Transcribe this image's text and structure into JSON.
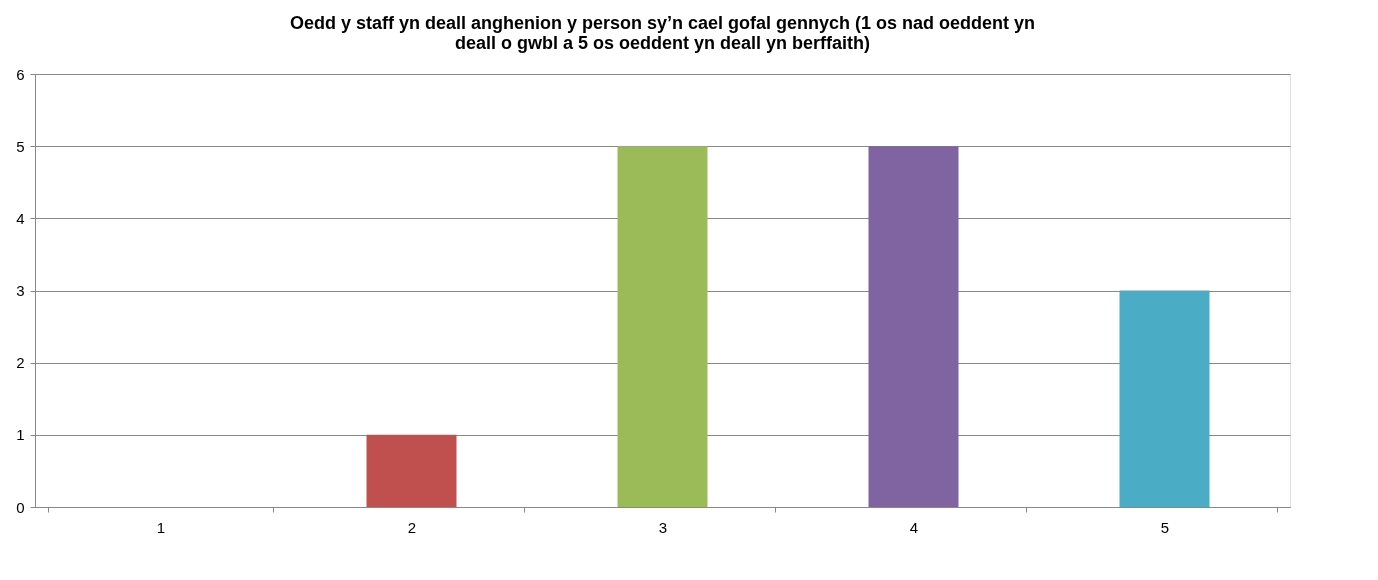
{
  "chart_data": {
    "type": "bar",
    "title": "Oedd y staff yn deall anghenion y person sy’n cael gofal gennych (1 os nad oeddent yn deall o gwbl a 5 os oeddent yn deall yn berffaith)",
    "categories": [
      "1",
      "2",
      "3",
      "4",
      "5"
    ],
    "values": [
      0,
      1,
      5,
      5,
      3
    ],
    "colors": [
      "#4f81bd",
      "#c0504d",
      "#9bbb59",
      "#8064a2",
      "#4bacc6"
    ],
    "ylim": [
      0,
      6
    ],
    "yticks": [
      0,
      1,
      2,
      3,
      4,
      5,
      6
    ],
    "grid": "y"
  }
}
